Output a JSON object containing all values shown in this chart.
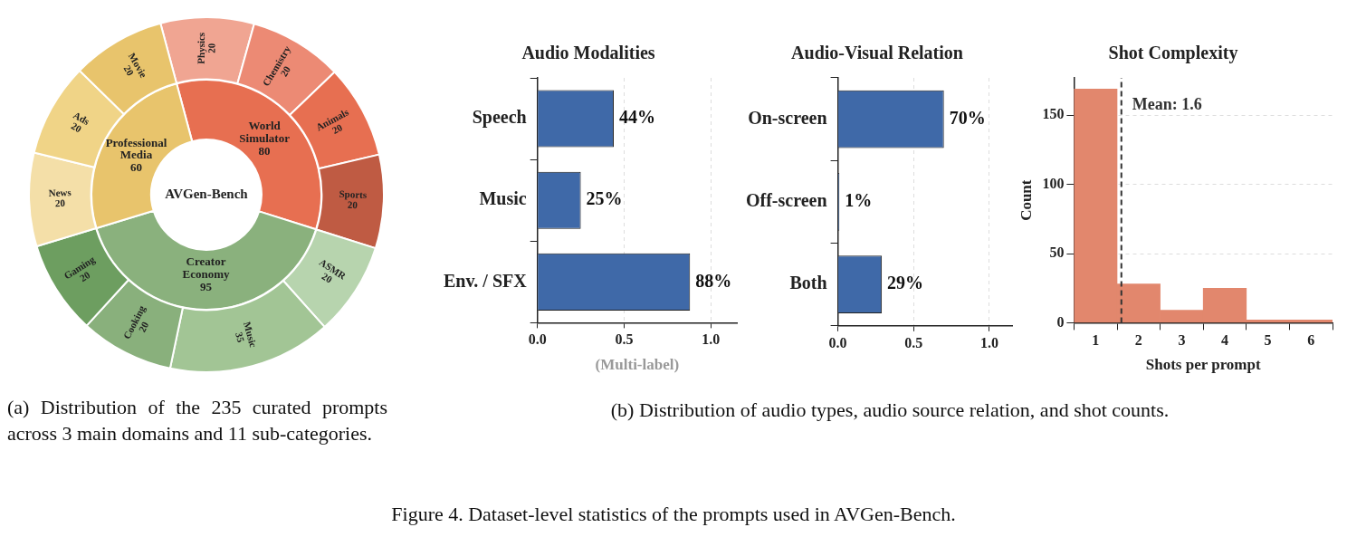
{
  "chart_data": [
    {
      "type": "donut",
      "title": "AVGen-Bench",
      "data_labels": true,
      "categories": [
        "World Simulator",
        "Creator Economy",
        "Professional Media"
      ],
      "values": [
        80,
        95,
        60
      ],
      "colors": [
        "#e76f51",
        "#8ab17d",
        "#e8c46c"
      ],
      "annotations": [
        "(a) Distribution of the 235 curated prompts across 3 main domains and 11 sub-categories."
      ]
    },
    {
      "type": "donut",
      "data_labels": true,
      "categories": [
        "Physics",
        "Chemistry",
        "Animals",
        "Sports",
        "ASMR",
        "Music",
        "Cooking",
        "Gaming",
        "News",
        "Ads",
        "Movie"
      ],
      "values": [
        20,
        20,
        20,
        20,
        20,
        35,
        20,
        20,
        20,
        20,
        20
      ],
      "colors": [
        "#f0a592",
        "#ec8a74",
        "#e76f51",
        "#bf5b43",
        "#b7d4ae",
        "#a2c595",
        "#89b07c",
        "#6d9e60",
        "#f4dfa8",
        "#f0d487",
        "#e8c46c"
      ]
    },
    {
      "type": "bar",
      "orientation": "horizontal",
      "title": "Audio Modalities",
      "xlabel": "(Multi-label)",
      "categories": [
        "Speech",
        "Music",
        "Env. / SFX"
      ],
      "values": [
        0.44,
        0.25,
        0.88
      ],
      "value_labels": [
        "44%",
        "25%",
        "88%"
      ],
      "color": "#3f69a8",
      "xlim": [
        0,
        1.15
      ],
      "xticks": [
        {
          "value": 0,
          "label": "0.0"
        },
        {
          "value": 0.5,
          "label": "0.5"
        },
        {
          "value": 1,
          "label": "1.0"
        }
      ],
      "grid": "x"
    },
    {
      "type": "bar",
      "orientation": "horizontal",
      "title": "Audio-Visual Relation",
      "categories": [
        "On-screen",
        "Off-screen",
        "Both"
      ],
      "values": [
        0.7,
        0.01,
        0.29
      ],
      "value_labels": [
        "70%",
        "1%",
        "29%"
      ],
      "color": "#3f69a8",
      "xlim": [
        0,
        1.15
      ],
      "xticks": [
        {
          "value": 0,
          "label": "0.0"
        },
        {
          "value": 0.5,
          "label": "0.5"
        },
        {
          "value": 1,
          "label": "1.0"
        }
      ],
      "grid": "x",
      "annotations": [
        "(b) Distribution of audio types, audio source relation, and shot counts."
      ]
    },
    {
      "type": "histogram",
      "title": "Shot Complexity",
      "xlabel": "Shots per prompt",
      "ylabel": "Count",
      "bins": [
        0.5,
        1.5,
        2.5,
        3.5,
        4.5,
        5.5,
        6.5
      ],
      "values": [
        169,
        28,
        9,
        25,
        2,
        2
      ],
      "color": "#e2876d",
      "xlim": [
        0.5,
        6.5
      ],
      "xticks": [
        1,
        2,
        3,
        4,
        5,
        6
      ],
      "ylim": [
        0,
        177
      ],
      "yticks": [
        0,
        50,
        100,
        150
      ],
      "grid": "y",
      "ref_lines": [
        {
          "axis": "x",
          "value": 1.6,
          "label": "Mean: 1.6",
          "color": "#333333",
          "line_style": "dashed"
        }
      ],
      "annotations": [
        "Figure 4. Dataset-level statistics of the prompts used in AVGen-Bench."
      ]
    }
  ]
}
